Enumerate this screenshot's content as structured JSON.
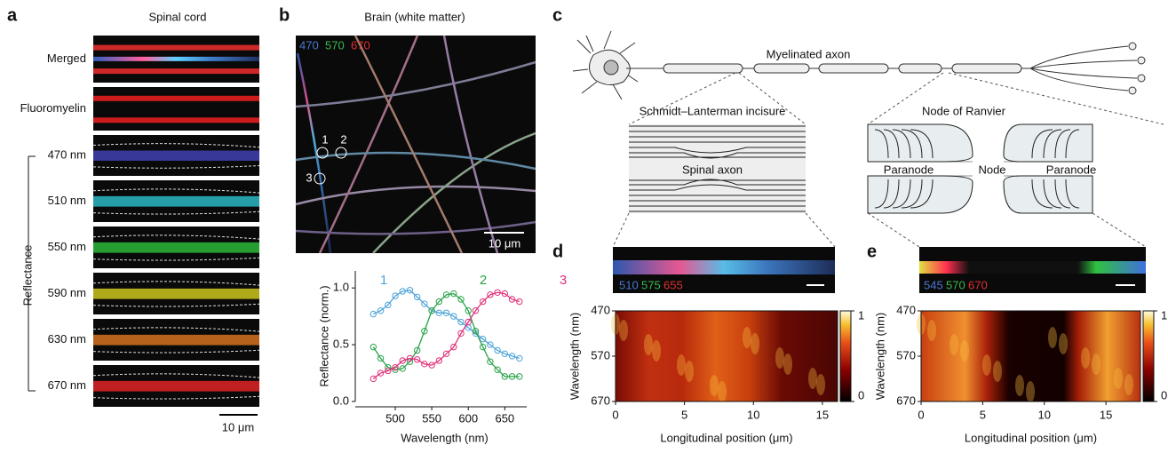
{
  "panels": {
    "a": {
      "letter": "a",
      "title": "Spinal cord",
      "rows": [
        "Merged",
        "Fluoromyelin",
        "470 nm",
        "510 nm",
        "550 nm",
        "590 nm",
        "630 nm",
        "670 nm"
      ],
      "group_label": "Reflectance",
      "scale": "10 μm"
    },
    "b": {
      "letter": "b",
      "title": "Brain (white matter)",
      "channels": [
        "470",
        "570",
        "670"
      ],
      "rois": [
        "1",
        "2",
        "3"
      ],
      "scale": "10 μm"
    },
    "c": {
      "letter": "c",
      "axon": "Myelinated axon",
      "incisure": "Schmidt–Lanterman incisure",
      "node_title": "Node of Ranvier",
      "spinal": "Spinal axon",
      "paranode_left": "Paranode",
      "node": "Node",
      "paranode_right": "Paranode"
    },
    "d": {
      "letter": "d",
      "channels": [
        "510",
        "575",
        "655"
      ]
    },
    "e": {
      "letter": "e",
      "channels": [
        "545",
        "570",
        "670"
      ]
    }
  },
  "chart_data": [
    {
      "type": "line",
      "xlabel": "Wavelength (nm)",
      "ylabel": "Reflectance (norm.)",
      "x": [
        470,
        480,
        490,
        500,
        510,
        520,
        530,
        540,
        550,
        560,
        570,
        580,
        590,
        600,
        610,
        620,
        630,
        640,
        650,
        660,
        670
      ],
      "series": [
        {
          "name": "1",
          "color": "#4ea3d8",
          "values": [
            0.77,
            0.8,
            0.85,
            0.93,
            0.97,
            0.98,
            0.92,
            0.86,
            0.8,
            0.78,
            0.78,
            0.75,
            0.7,
            0.65,
            0.6,
            0.55,
            0.5,
            0.45,
            0.42,
            0.4,
            0.38
          ]
        },
        {
          "name": "2",
          "color": "#2aa24a",
          "values": [
            0.48,
            0.38,
            0.3,
            0.28,
            0.29,
            0.35,
            0.45,
            0.62,
            0.8,
            0.88,
            0.94,
            0.95,
            0.9,
            0.8,
            0.62,
            0.48,
            0.35,
            0.28,
            0.22,
            0.22,
            0.22
          ]
        },
        {
          "name": "3",
          "color": "#e0307a",
          "values": [
            0.2,
            0.25,
            0.27,
            0.3,
            0.36,
            0.38,
            0.37,
            0.33,
            0.32,
            0.36,
            0.42,
            0.48,
            0.6,
            0.7,
            0.8,
            0.88,
            0.94,
            0.96,
            0.95,
            0.9,
            0.88
          ]
        }
      ],
      "xlim": [
        455,
        680
      ],
      "ylim": [
        0,
        1.15
      ],
      "xticks": [
        500,
        550,
        600,
        650
      ],
      "yticks": [
        {
          "value": 0,
          "label": "0.0"
        },
        {
          "value": 0.5,
          "label": "0.5"
        },
        {
          "value": 1,
          "label": "1.0"
        }
      ]
    },
    {
      "type": "heatmap",
      "xlabel": "Longitudinal position (μm)",
      "ylabel": "Wavelength (nm)",
      "xlim": [
        0,
        16.1
      ],
      "ylim": [
        470,
        670
      ],
      "y_inverted": true,
      "xticks": [
        0,
        5,
        10,
        15
      ],
      "yticks": [
        470,
        570,
        670
      ],
      "clim": [
        0,
        1
      ],
      "cticks": [
        0,
        1
      ]
    },
    {
      "type": "heatmap",
      "xlabel": "Longitudinal position (μm)",
      "ylabel": "Wavelength (nm)",
      "xlim": [
        0,
        17.8
      ],
      "ylim": [
        470,
        670
      ],
      "y_inverted": true,
      "xticks": [
        0,
        5,
        10,
        15
      ],
      "yticks": [
        470,
        570,
        670
      ],
      "clim": [
        0,
        1
      ],
      "cticks": [
        0,
        1
      ]
    }
  ]
}
